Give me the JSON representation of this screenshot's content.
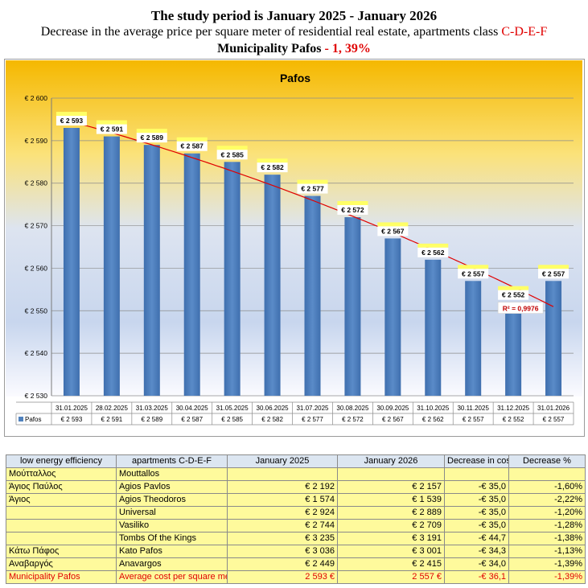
{
  "header": {
    "line1": "The study period is January 2025 - January 2026",
    "line2_text": "Decrease in the average price per square meter of residential real estate, apartments class ",
    "line2_class": "C-D-E-F",
    "line3_text": "Municipality Pafos",
    "line3_change": " - 1, 39%"
  },
  "chart_data": {
    "type": "bar",
    "title": "Pafos",
    "categories": [
      "31.01.2025",
      "28.02.2025",
      "31.03.2025",
      "30.04.2025",
      "31.05.2025",
      "30.06.2025",
      "31.07.2025",
      "30.08.2025",
      "30.09.2025",
      "31.10.2025",
      "30.11.2025",
      "31.12.2025",
      "31.01.2026"
    ],
    "series": [
      {
        "name": "Pafos",
        "values": [
          2593,
          2591,
          2589,
          2587,
          2585,
          2582,
          2577,
          2572,
          2567,
          2562,
          2557,
          2552,
          2557
        ]
      }
    ],
    "data_labels": [
      "€ 2 593",
      "€ 2 591",
      "€ 2 589",
      "€ 2 587",
      "€ 2 585",
      "€ 2 582",
      "€ 2 577",
      "€ 2 572",
      "€ 2 567",
      "€ 2 562",
      "€ 2 557",
      "€ 2 552",
      "€ 2 557"
    ],
    "table_labels": [
      "€ 2 593",
      "€ 2 591",
      "€ 2 589",
      "€ 2 587",
      "€ 2 585",
      "€ 2 582",
      "€ 2 577",
      "€ 2 572",
      "€ 2 567",
      "€ 2 562",
      "€ 2 557",
      "€ 2 552",
      "€ 2 557"
    ],
    "ylim": [
      2530,
      2600
    ],
    "yticks": [
      2530,
      2540,
      2550,
      2560,
      2570,
      2580,
      2590,
      2600
    ],
    "ytick_labels": [
      "€ 2 530",
      "€ 2 540",
      "€ 2 550",
      "€ 2 560",
      "€ 2 570",
      "€ 2 580",
      "€ 2 590",
      "€ 2 600"
    ],
    "trendline": {
      "type": "polynomial",
      "r2_label": "R² = 0,9976"
    },
    "grid": true,
    "legend": "bottom-left data table",
    "colors": {
      "bar": "#4f81bd",
      "trend": "#e00000",
      "label_bg": "#ffff66",
      "bg_top": "#f5b800",
      "bg_bottom": "#ffffff"
    }
  },
  "table": {
    "headers": [
      "low energy efficiency",
      "apartments C-D-E-F",
      "January 2025",
      "January 2026",
      "Decrease in cost",
      "Decrease %"
    ],
    "rows": [
      [
        "Μούτταλλος",
        "Mouttallos",
        "",
        "",
        "",
        ""
      ],
      [
        "Άγιος Παύλος",
        "Agios Pavlos",
        "€ 2 192",
        "€ 2 157",
        "-€ 35,0",
        "-1,60%"
      ],
      [
        "Άγιος",
        "Agios Theodoros",
        "€ 1 574",
        "€ 1 539",
        "-€ 35,0",
        "-2,22%"
      ],
      [
        "",
        "Universal",
        "€ 2 924",
        "€ 2 889",
        "-€ 35,0",
        "-1,20%"
      ],
      [
        "",
        "Vasiliko",
        "€ 2 744",
        "€ 2 709",
        "-€ 35,0",
        "-1,28%"
      ],
      [
        "",
        "Tombs Of the Kings",
        "€ 3 235",
        "€ 3 191",
        "-€ 44,7",
        "-1,38%"
      ],
      [
        "Κάτω Πάφος",
        "Kato Pafos",
        "€ 3 036",
        "€ 3 001",
        "-€ 34,3",
        "-1,13%"
      ],
      [
        "Αναβαργός",
        "Anavargos",
        "€ 2 449",
        "€ 2 415",
        "-€ 34,0",
        "-1,39%"
      ]
    ],
    "total": [
      "Municipality Pafos",
      "Average cost per square meter",
      "2 593 €",
      "2 557 €",
      "-€ 36,1",
      "-1,39%"
    ]
  }
}
